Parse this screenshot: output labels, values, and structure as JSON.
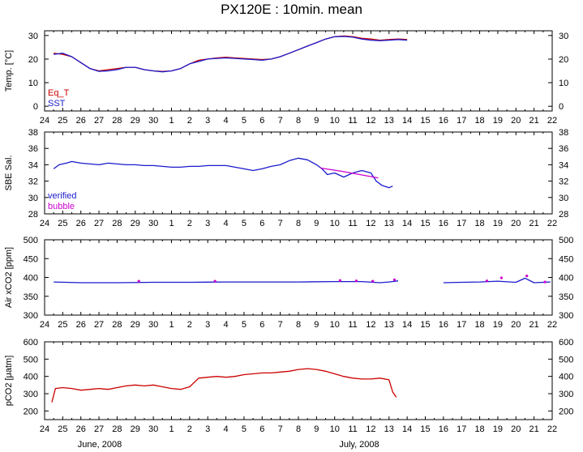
{
  "title": "PX120E : 10min. mean",
  "month_labels": [
    "June, 2008",
    "July, 2008"
  ],
  "colors": {
    "red": "#cc0000",
    "blue": "#1a1acc",
    "magenta": "#cc00cc",
    "axis": "#000000"
  },
  "chart_data": [
    {
      "type": "line",
      "ylabel": "Temp. [°C]",
      "ylim": [
        -2,
        32
      ],
      "yticks": [
        0,
        10,
        20,
        30
      ],
      "xlabels": [
        "24",
        "25",
        "26",
        "27",
        "28",
        "29",
        "30",
        "1",
        "2",
        "3",
        "4",
        "5",
        "6",
        "7",
        "8",
        "9",
        "10",
        "11",
        "12",
        "13",
        "14",
        "15",
        "16",
        "17",
        "18",
        "19",
        "20",
        "21",
        "22"
      ],
      "legend": [
        {
          "name": "Eq_T",
          "color": "#cc0000"
        },
        {
          "name": "SST",
          "color": "#1a1acc"
        }
      ],
      "legend_position": "bottom-left",
      "series": [
        {
          "name": "Eq_T",
          "style": "line",
          "color": "#cc0000",
          "points": [
            [
              0.5,
              22.5
            ],
            [
              1.0,
              22.0
            ],
            [
              1.5,
              21.0
            ],
            [
              2.0,
              18.5
            ],
            [
              2.5,
              16.0
            ],
            [
              3.0,
              15.0
            ],
            [
              3.5,
              15.5
            ],
            [
              4.0,
              16.0
            ],
            [
              4.5,
              16.5
            ],
            [
              5.0,
              16.5
            ],
            [
              5.5,
              15.5
            ],
            [
              6.0,
              15.0
            ],
            [
              6.5,
              14.8
            ],
            [
              7.0,
              15.0
            ],
            [
              7.5,
              16.0
            ],
            [
              8.0,
              18.0
            ],
            [
              8.5,
              19.5
            ],
            [
              9.0,
              20.0
            ],
            [
              9.5,
              20.5
            ],
            [
              10.0,
              20.8
            ],
            [
              10.5,
              20.5
            ],
            [
              11.0,
              20.3
            ],
            [
              11.5,
              20.0
            ],
            [
              12.0,
              19.8
            ],
            [
              12.5,
              20.0
            ],
            [
              13.0,
              21.0
            ],
            [
              13.5,
              22.5
            ],
            [
              14.0,
              24.0
            ],
            [
              14.5,
              25.5
            ],
            [
              15.0,
              27.0
            ],
            [
              15.5,
              28.5
            ],
            [
              16.0,
              29.5
            ],
            [
              16.5,
              29.8
            ],
            [
              17.0,
              29.5
            ],
            [
              17.5,
              28.8
            ],
            [
              18.0,
              28.5
            ],
            [
              18.5,
              28.0
            ],
            [
              19.0,
              28.3
            ],
            [
              19.5,
              28.5
            ],
            [
              20.0,
              28.3
            ]
          ]
        },
        {
          "name": "SST",
          "style": "line",
          "color": "#1a1acc",
          "points": [
            [
              0.5,
              22.0
            ],
            [
              1.0,
              22.5
            ],
            [
              1.5,
              21.0
            ],
            [
              2.0,
              18.5
            ],
            [
              2.5,
              16.0
            ],
            [
              3.0,
              14.8
            ],
            [
              3.5,
              15.0
            ],
            [
              4.0,
              15.5
            ],
            [
              4.5,
              16.5
            ],
            [
              5.0,
              16.5
            ],
            [
              5.5,
              15.5
            ],
            [
              6.0,
              15.0
            ],
            [
              6.5,
              14.6
            ],
            [
              7.0,
              15.0
            ],
            [
              7.5,
              16.0
            ],
            [
              8.0,
              18.0
            ],
            [
              8.5,
              19.0
            ],
            [
              9.0,
              20.0
            ],
            [
              9.5,
              20.3
            ],
            [
              10.0,
              20.5
            ],
            [
              10.5,
              20.3
            ],
            [
              11.0,
              20.0
            ],
            [
              11.5,
              19.8
            ],
            [
              12.0,
              19.5
            ],
            [
              12.5,
              20.0
            ],
            [
              13.0,
              21.0
            ],
            [
              13.5,
              22.5
            ],
            [
              14.0,
              24.0
            ],
            [
              14.5,
              25.5
            ],
            [
              15.0,
              27.0
            ],
            [
              15.5,
              28.5
            ],
            [
              16.0,
              29.5
            ],
            [
              16.5,
              29.6
            ],
            [
              17.0,
              29.3
            ],
            [
              17.5,
              28.5
            ],
            [
              18.0,
              28.0
            ],
            [
              18.5,
              27.8
            ],
            [
              19.0,
              28.0
            ],
            [
              19.5,
              28.3
            ],
            [
              20.0,
              28.0
            ]
          ]
        }
      ]
    },
    {
      "type": "line",
      "ylabel": "SBE Sal.",
      "ylim": [
        28,
        38
      ],
      "yticks": [
        28,
        30,
        32,
        34,
        36,
        38
      ],
      "xlabels": [
        "24",
        "25",
        "26",
        "27",
        "28",
        "29",
        "30",
        "1",
        "2",
        "3",
        "4",
        "5",
        "6",
        "7",
        "8",
        "9",
        "10",
        "11",
        "12",
        "13",
        "14",
        "15",
        "16",
        "17",
        "18",
        "19",
        "20",
        "21",
        "22"
      ],
      "legend": [
        {
          "name": "verified",
          "color": "#1a1acc"
        },
        {
          "name": "bubble",
          "color": "#cc00cc"
        }
      ],
      "legend_position": "bottom-left",
      "series": [
        {
          "name": "verified",
          "style": "line",
          "color": "#1a1acc",
          "points": [
            [
              0.5,
              33.5
            ],
            [
              0.8,
              34.0
            ],
            [
              1.2,
              34.2
            ],
            [
              1.5,
              34.4
            ],
            [
              2.0,
              34.2
            ],
            [
              2.5,
              34.1
            ],
            [
              3.0,
              34.0
            ],
            [
              3.5,
              34.2
            ],
            [
              4.0,
              34.1
            ],
            [
              4.5,
              34.0
            ],
            [
              5.0,
              34.0
            ],
            [
              5.5,
              33.9
            ],
            [
              6.0,
              33.9
            ],
            [
              6.5,
              33.8
            ],
            [
              7.0,
              33.7
            ],
            [
              7.5,
              33.7
            ],
            [
              8.0,
              33.8
            ],
            [
              8.5,
              33.8
            ],
            [
              9.0,
              33.9
            ],
            [
              9.5,
              33.9
            ],
            [
              10.0,
              33.9
            ],
            [
              10.5,
              33.7
            ],
            [
              11.0,
              33.5
            ],
            [
              11.5,
              33.3
            ],
            [
              12.0,
              33.5
            ],
            [
              12.5,
              33.8
            ],
            [
              13.0,
              34.0
            ],
            [
              13.5,
              34.5
            ],
            [
              14.0,
              34.8
            ],
            [
              14.5,
              34.6
            ],
            [
              15.0,
              34.0
            ],
            [
              15.3,
              33.5
            ],
            [
              15.6,
              32.8
            ],
            [
              16.0,
              33.0
            ],
            [
              16.5,
              32.5
            ],
            [
              17.0,
              33.0
            ],
            [
              17.5,
              33.3
            ],
            [
              18.0,
              33.0
            ],
            [
              18.3,
              32.0
            ],
            [
              18.6,
              31.5
            ],
            [
              19.0,
              31.2
            ],
            [
              19.2,
              31.4
            ]
          ]
        },
        {
          "name": "bubble",
          "style": "line",
          "color": "#cc00cc",
          "points": [
            [
              15.2,
              33.6
            ],
            [
              16.4,
              33.2
            ],
            [
              18.4,
              32.4
            ]
          ]
        }
      ]
    },
    {
      "type": "line",
      "ylabel": "Air xCO2 [ppm]",
      "ylim": [
        300,
        500
      ],
      "yticks": [
        300,
        350,
        400,
        450,
        500
      ],
      "xlabels": [
        "24",
        "25",
        "26",
        "27",
        "28",
        "29",
        "30",
        "1",
        "2",
        "3",
        "4",
        "5",
        "6",
        "7",
        "8",
        "9",
        "10",
        "11",
        "12",
        "13",
        "14",
        "15",
        "16",
        "17",
        "18",
        "19",
        "20",
        "21",
        "22"
      ],
      "series": [
        {
          "name": "",
          "style": "line",
          "color": "#1a1acc",
          "points": [
            [
              0.5,
              388
            ],
            [
              2.0,
              386
            ],
            [
              4.0,
              386
            ],
            [
              6.0,
              387
            ],
            [
              8.0,
              387
            ],
            [
              10.0,
              388
            ],
            [
              12.0,
              388
            ],
            [
              14.0,
              388
            ],
            [
              16.0,
              389
            ],
            [
              17.5,
              389
            ],
            [
              18.5,
              386
            ],
            [
              19.0,
              388
            ],
            [
              19.5,
              391
            ]
          ]
        },
        {
          "name": "",
          "style": "line",
          "color": "#1a1acc",
          "points": [
            [
              22.0,
              386
            ],
            [
              23.0,
              387
            ],
            [
              24.0,
              388
            ],
            [
              25.0,
              390
            ],
            [
              26.0,
              387
            ],
            [
              26.5,
              398
            ],
            [
              27.0,
              386
            ],
            [
              27.9,
              388
            ]
          ]
        },
        {
          "name": "",
          "style": "dots",
          "color": "#cc00cc",
          "points": [
            [
              5.2,
              390
            ],
            [
              9.4,
              390
            ],
            [
              16.3,
              392
            ],
            [
              17.2,
              391
            ],
            [
              18.1,
              390
            ],
            [
              19.3,
              394
            ],
            [
              24.4,
              391
            ],
            [
              25.2,
              399
            ],
            [
              26.6,
              404
            ],
            [
              27.6,
              388
            ]
          ]
        }
      ]
    },
    {
      "type": "line",
      "ylabel": "pCO2 [μatm]",
      "ylim": [
        150,
        600
      ],
      "yticks": [
        200,
        300,
        400,
        500,
        600
      ],
      "xlabels": [
        "24",
        "25",
        "26",
        "27",
        "28",
        "29",
        "30",
        "1",
        "2",
        "3",
        "4",
        "5",
        "6",
        "7",
        "8",
        "9",
        "10",
        "11",
        "12",
        "13",
        "14",
        "15",
        "16",
        "17",
        "18",
        "19",
        "20",
        "21",
        "22"
      ],
      "series": [
        {
          "name": "",
          "style": "line",
          "color": "#cc0000",
          "points": [
            [
              0.4,
              250
            ],
            [
              0.6,
              330
            ],
            [
              1.0,
              335
            ],
            [
              1.5,
              330
            ],
            [
              2.0,
              320
            ],
            [
              2.5,
              325
            ],
            [
              3.0,
              330
            ],
            [
              3.5,
              325
            ],
            [
              4.0,
              335
            ],
            [
              4.5,
              345
            ],
            [
              5.0,
              350
            ],
            [
              5.5,
              345
            ],
            [
              6.0,
              350
            ],
            [
              6.5,
              340
            ],
            [
              7.0,
              330
            ],
            [
              7.5,
              325
            ],
            [
              8.0,
              340
            ],
            [
              8.5,
              390
            ],
            [
              9.0,
              395
            ],
            [
              9.5,
              400
            ],
            [
              10.0,
              395
            ],
            [
              10.5,
              400
            ],
            [
              11.0,
              410
            ],
            [
              11.5,
              415
            ],
            [
              12.0,
              420
            ],
            [
              12.5,
              420
            ],
            [
              13.0,
              425
            ],
            [
              13.5,
              430
            ],
            [
              14.0,
              440
            ],
            [
              14.5,
              445
            ],
            [
              15.0,
              440
            ],
            [
              15.5,
              430
            ],
            [
              16.0,
              415
            ],
            [
              16.5,
              400
            ],
            [
              17.0,
              390
            ],
            [
              17.5,
              385
            ],
            [
              18.0,
              385
            ],
            [
              18.5,
              390
            ],
            [
              19.0,
              380
            ],
            [
              19.2,
              310
            ],
            [
              19.4,
              280
            ]
          ]
        }
      ]
    }
  ]
}
